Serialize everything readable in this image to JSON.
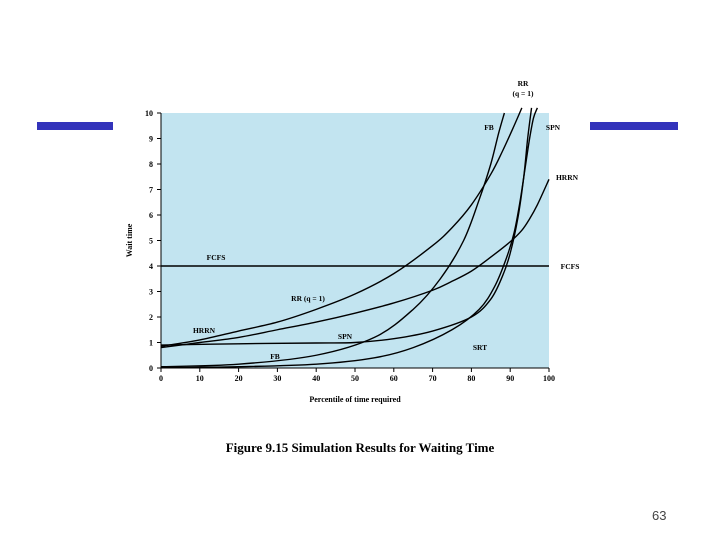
{
  "slide": {
    "caption": "Figure 9.15  Simulation Results for Waiting Time",
    "page_number": "63",
    "accent_color": "#3333bb"
  },
  "chart_data": {
    "type": "line",
    "plot_background": "#c2e4f0",
    "xlabel": "Percentile of time required",
    "ylabel": "Wait time",
    "xlim": [
      0,
      100
    ],
    "ylim": [
      0,
      10
    ],
    "xticks": [
      0,
      10,
      20,
      30,
      40,
      50,
      60,
      70,
      80,
      90,
      100
    ],
    "yticks": [
      0,
      1,
      2,
      3,
      4,
      5,
      6,
      7,
      8,
      9,
      10
    ],
    "grid": false,
    "series": [
      {
        "name": "FCFS",
        "labels": [
          "FCFS",
          "FCFS"
        ],
        "x": [
          0,
          100
        ],
        "y": [
          4,
          4
        ]
      },
      {
        "name": "FB",
        "labels": [
          "FB",
          "FB"
        ],
        "x": [
          0,
          20,
          40,
          55,
          65,
          72,
          78,
          82,
          85,
          87,
          88.5
        ],
        "y": [
          0.05,
          0.15,
          0.5,
          1.2,
          2.3,
          3.5,
          5,
          6.6,
          8,
          9.2,
          10
        ]
      },
      {
        "name": "RR (q = 1)",
        "labels": [
          "RR (q = 1)",
          "RR\n(q = 1)"
        ],
        "x": [
          0,
          10,
          20,
          30,
          40,
          50,
          60,
          70,
          75,
          80,
          85,
          88,
          91,
          93
        ],
        "y": [
          0.85,
          1.1,
          1.45,
          1.8,
          2.3,
          2.9,
          3.7,
          4.8,
          5.5,
          6.4,
          7.6,
          8.5,
          9.5,
          10.2
        ]
      },
      {
        "name": "SPN",
        "labels": [
          "SPN",
          "SPN"
        ],
        "x": [
          0,
          20,
          40,
          50,
          60,
          70,
          80,
          85,
          88,
          90,
          92,
          93.5,
          94.5,
          95.5
        ],
        "y": [
          0.9,
          0.95,
          0.98,
          1.0,
          1.15,
          1.45,
          2.0,
          2.7,
          3.6,
          4.5,
          5.9,
          7.5,
          9,
          10.2
        ]
      },
      {
        "name": "HRRN",
        "labels": [
          "HRRN",
          "HRRN"
        ],
        "x": [
          0,
          10,
          20,
          30,
          40,
          50,
          60,
          70,
          75,
          80,
          85,
          90,
          93,
          95,
          97,
          100
        ],
        "y": [
          0.8,
          1.0,
          1.2,
          1.5,
          1.8,
          2.15,
          2.55,
          3.05,
          3.4,
          3.8,
          4.35,
          4.95,
          5.4,
          5.85,
          6.4,
          7.4
        ]
      },
      {
        "name": "SRT",
        "labels": [
          "SRT"
        ],
        "x": [
          0,
          20,
          40,
          55,
          65,
          75,
          82,
          86,
          89,
          91,
          92.5,
          94,
          95,
          96,
          97
        ],
        "y": [
          0.01,
          0.05,
          0.15,
          0.4,
          0.8,
          1.5,
          2.3,
          3.2,
          4.3,
          5.3,
          6.5,
          8,
          9,
          9.8,
          10.2
        ]
      }
    ]
  }
}
